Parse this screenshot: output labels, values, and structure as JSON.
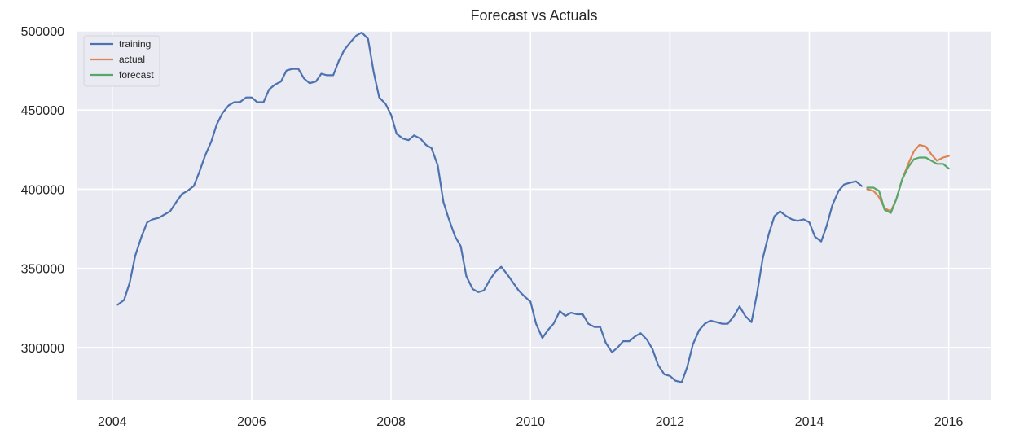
{
  "chart_data": {
    "type": "line",
    "title": "Forecast vs Actuals",
    "xlabel": "",
    "ylabel": "",
    "xlim": [
      2003.5,
      2016.6
    ],
    "ylim": [
      267000,
      500000
    ],
    "x_ticks": [
      2004,
      2006,
      2008,
      2010,
      2012,
      2014,
      2016
    ],
    "x_tick_labels": [
      "2004",
      "2006",
      "2008",
      "2010",
      "2012",
      "2014",
      "2016"
    ],
    "y_ticks": [
      300000,
      350000,
      400000,
      450000,
      500000
    ],
    "y_tick_labels": [
      "300000",
      "350000",
      "400000",
      "450000",
      "500000"
    ],
    "grid": true,
    "legend_position": "upper-left",
    "background_color": "#EAEAF2",
    "series": [
      {
        "name": "training",
        "color": "#4C72B0",
        "x": [
          2004.08,
          2004.17,
          2004.25,
          2004.33,
          2004.42,
          2004.5,
          2004.58,
          2004.67,
          2004.75,
          2004.83,
          2004.92,
          2005.0,
          2005.08,
          2005.17,
          2005.25,
          2005.33,
          2005.42,
          2005.5,
          2005.58,
          2005.67,
          2005.75,
          2005.83,
          2005.92,
          2006.0,
          2006.08,
          2006.17,
          2006.25,
          2006.33,
          2006.42,
          2006.5,
          2006.58,
          2006.67,
          2006.75,
          2006.83,
          2006.92,
          2007.0,
          2007.08,
          2007.17,
          2007.25,
          2007.33,
          2007.42,
          2007.5,
          2007.58,
          2007.67,
          2007.75,
          2007.83,
          2007.92,
          2008.0,
          2008.08,
          2008.17,
          2008.25,
          2008.33,
          2008.42,
          2008.5,
          2008.58,
          2008.67,
          2008.75,
          2008.83,
          2008.92,
          2009.0,
          2009.08,
          2009.17,
          2009.25,
          2009.33,
          2009.42,
          2009.5,
          2009.58,
          2009.67,
          2009.75,
          2009.83,
          2009.92,
          2010.0,
          2010.08,
          2010.17,
          2010.25,
          2010.33,
          2010.42,
          2010.5,
          2010.58,
          2010.67,
          2010.75,
          2010.83,
          2010.92,
          2011.0,
          2011.08,
          2011.17,
          2011.25,
          2011.33,
          2011.42,
          2011.5,
          2011.58,
          2011.67,
          2011.75,
          2011.83,
          2011.92,
          2012.0,
          2012.08,
          2012.17,
          2012.25,
          2012.33,
          2012.42,
          2012.5,
          2012.58,
          2012.67,
          2012.75,
          2012.83,
          2012.92,
          2013.0,
          2013.08,
          2013.17,
          2013.25,
          2013.33,
          2013.42,
          2013.5,
          2013.58,
          2013.67,
          2013.75,
          2013.83,
          2013.92,
          2014.0,
          2014.08,
          2014.17,
          2014.25,
          2014.33,
          2014.42,
          2014.5,
          2014.58,
          2014.67,
          2014.75
        ],
        "values": [
          327000,
          330000,
          341000,
          358000,
          370000,
          379000,
          381000,
          382000,
          384000,
          386000,
          392000,
          397000,
          399000,
          402000,
          411000,
          421000,
          430000,
          441000,
          448000,
          453000,
          455000,
          455000,
          458000,
          458000,
          455000,
          455000,
          463000,
          466000,
          468000,
          475000,
          476000,
          476000,
          470000,
          467000,
          468000,
          473000,
          472000,
          472000,
          481000,
          488000,
          493000,
          497000,
          499000,
          495000,
          474000,
          458000,
          454000,
          447000,
          435000,
          432000,
          431000,
          434000,
          432000,
          428000,
          426000,
          415000,
          392000,
          381000,
          370000,
          364000,
          345000,
          337000,
          335000,
          336000,
          343000,
          348000,
          351000,
          346000,
          341000,
          336000,
          332000,
          329000,
          315000,
          306000,
          311000,
          315000,
          323000,
          320000,
          322000,
          321000,
          321000,
          315000,
          313000,
          313000,
          303000,
          297000,
          300000,
          304000,
          304000,
          307000,
          309000,
          305000,
          299000,
          289000,
          283000,
          282000,
          279000,
          278000,
          288000,
          302000,
          311000,
          315000,
          317000,
          316000,
          315000,
          315000,
          320000,
          326000,
          320000,
          316000,
          334000,
          356000,
          372000,
          383000,
          386000,
          383000,
          381000,
          380000,
          381000,
          379000,
          370000,
          367000,
          377000,
          390000,
          399000,
          403000,
          404000,
          405000,
          402000
        ]
      },
      {
        "name": "actual",
        "color": "#DD8452",
        "x": [
          2014.83,
          2014.92,
          2015.0,
          2015.08,
          2015.17,
          2015.25,
          2015.33,
          2015.42,
          2015.5,
          2015.58,
          2015.67,
          2015.75,
          2015.83,
          2015.92,
          2016.0
        ],
        "values": [
          400000,
          399000,
          395000,
          388000,
          386000,
          394000,
          406000,
          416000,
          424000,
          428000,
          427000,
          422000,
          418000,
          420000,
          421000
        ]
      },
      {
        "name": "forecast",
        "color": "#55A868",
        "x": [
          2014.83,
          2014.92,
          2015.0,
          2015.08,
          2015.17,
          2015.25,
          2015.33,
          2015.42,
          2015.5,
          2015.58,
          2015.67,
          2015.75,
          2015.83,
          2015.92,
          2016.0
        ],
        "values": [
          401000,
          401000,
          399000,
          387000,
          385000,
          394000,
          406000,
          414000,
          419000,
          420000,
          420000,
          418000,
          416000,
          416000,
          413000
        ]
      }
    ]
  }
}
